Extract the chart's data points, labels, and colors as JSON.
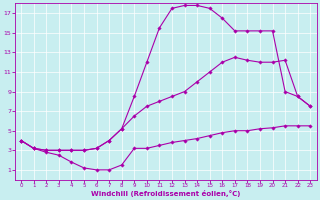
{
  "title": "",
  "xlabel": "Windchill (Refroidissement éolien,°C)",
  "background_color": "#c8eef0",
  "line_color": "#aa00aa",
  "xlim": [
    -0.5,
    23.5
  ],
  "ylim": [
    0,
    18
  ],
  "xticks": [
    0,
    1,
    2,
    3,
    4,
    5,
    6,
    7,
    8,
    9,
    10,
    11,
    12,
    13,
    14,
    15,
    16,
    17,
    18,
    19,
    20,
    21,
    22,
    23
  ],
  "yticks": [
    1,
    3,
    5,
    7,
    9,
    11,
    13,
    15,
    17
  ],
  "series": [
    {
      "x": [
        0,
        1,
        2,
        3,
        4,
        5,
        6,
        7,
        8,
        9,
        10,
        11,
        12,
        13,
        14,
        15,
        16,
        17,
        18,
        19,
        20,
        21,
        22,
        23
      ],
      "y": [
        4,
        3.2,
        2.8,
        2.5,
        1.8,
        1.2,
        1.0,
        1.0,
        1.5,
        3.2,
        3.2,
        3.5,
        3.8,
        4.0,
        4.2,
        4.5,
        4.8,
        5.0,
        5.0,
        5.2,
        5.3,
        5.5,
        5.5,
        5.5
      ]
    },
    {
      "x": [
        0,
        1,
        2,
        3,
        4,
        5,
        6,
        7,
        8,
        9,
        10,
        11,
        12,
        13,
        14,
        15,
        16,
        17,
        18,
        19,
        20,
        21,
        22,
        23
      ],
      "y": [
        4,
        3.2,
        3.0,
        3.0,
        3.0,
        3.0,
        3.2,
        4.0,
        5.2,
        6.5,
        7.5,
        8.0,
        8.5,
        9.0,
        10.0,
        11.0,
        12.0,
        12.5,
        12.2,
        12.0,
        12.0,
        12.2,
        8.5,
        7.5
      ]
    },
    {
      "x": [
        0,
        1,
        2,
        3,
        4,
        5,
        6,
        7,
        8,
        9,
        10,
        11,
        12,
        13,
        14,
        15,
        16,
        17,
        18,
        19,
        20,
        21,
        22,
        23
      ],
      "y": [
        4,
        3.2,
        3.0,
        3.0,
        3.0,
        3.0,
        3.2,
        4.0,
        5.2,
        8.5,
        12.0,
        15.5,
        17.5,
        17.8,
        17.8,
        17.5,
        16.5,
        15.2,
        15.2,
        15.2,
        15.2,
        9.0,
        8.5,
        7.5
      ]
    }
  ]
}
